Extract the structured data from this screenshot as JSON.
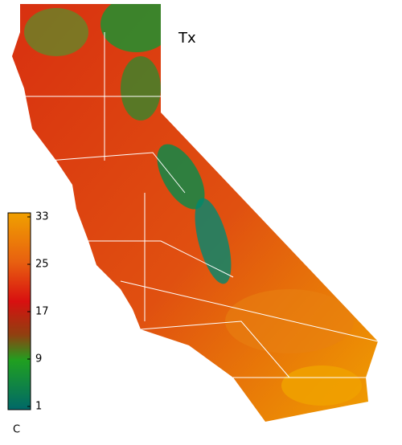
{
  "title": "Tx",
  "colorbar": {
    "unit": "C",
    "lim": [
      1,
      33
    ],
    "ticks": [
      1,
      9,
      17,
      25,
      33
    ]
  }
}
